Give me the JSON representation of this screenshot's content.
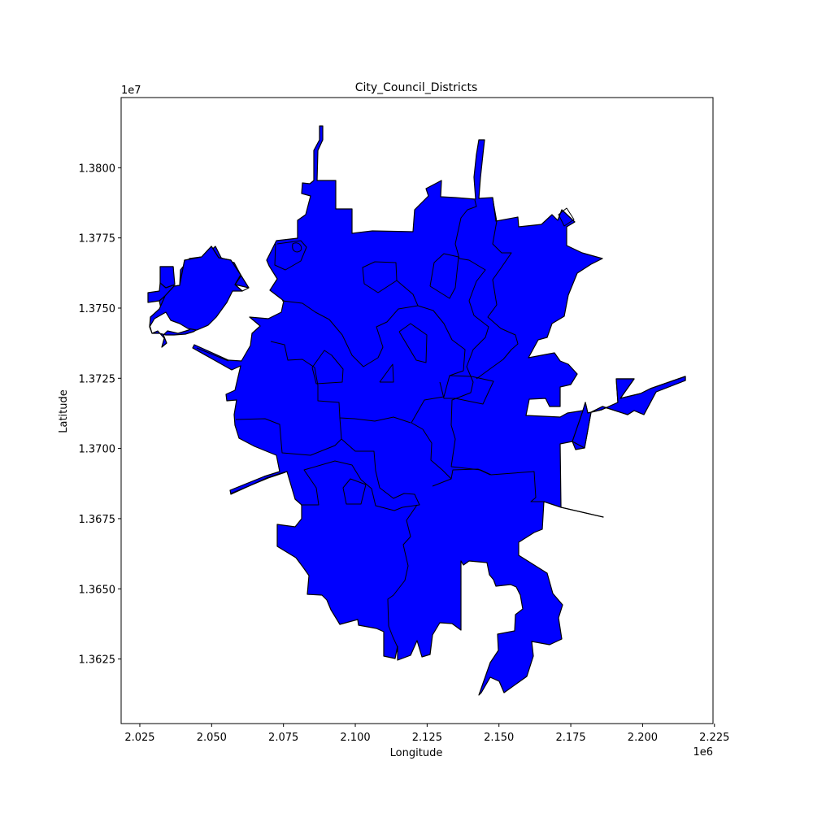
{
  "chart_data": {
    "type": "map",
    "title": "City_Council_Districts",
    "xlabel": "Longitude",
    "ylabel": "Latitude",
    "x_offset_label": "1e6",
    "y_offset_label": "1e7",
    "xlim": [
      2.0185,
      2.2245
    ],
    "ylim": [
      1.3602,
      1.3825
    ],
    "x_ticks": [
      2.025,
      2.05,
      2.075,
      2.1,
      2.125,
      2.15,
      2.175,
      2.2,
      2.225
    ],
    "x_tick_labels": [
      "2.025",
      "2.050",
      "2.075",
      "2.100",
      "2.125",
      "2.150",
      "2.175",
      "2.200",
      "2.225"
    ],
    "y_ticks": [
      1.3625,
      1.365,
      1.3675,
      1.37,
      1.3725,
      1.375,
      1.3775,
      1.38
    ],
    "y_tick_labels": [
      "1.3625",
      "1.3650",
      "1.3675",
      "1.3700",
      "1.3725",
      "1.3750",
      "1.3775",
      "1.3800"
    ],
    "fill_color": "#0000ff",
    "edge_color": "#000000",
    "grid": false,
    "legend": "none"
  }
}
